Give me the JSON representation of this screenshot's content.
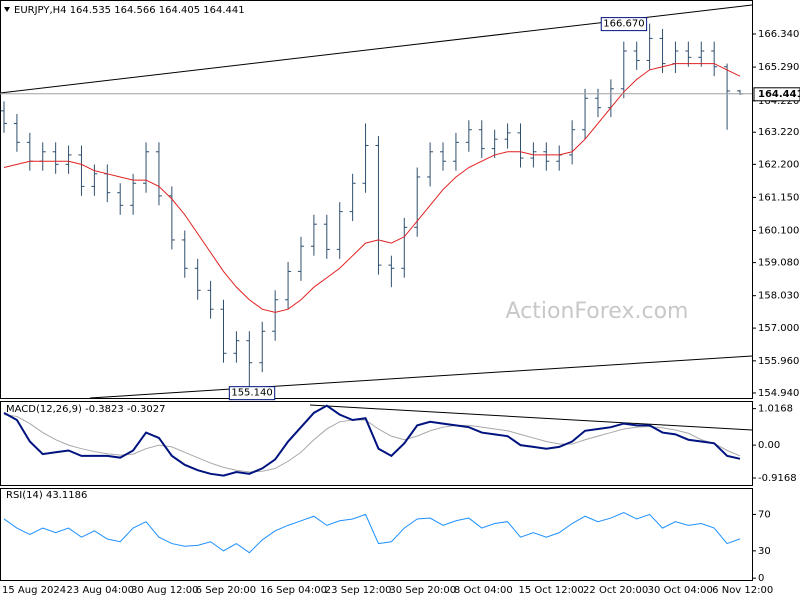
{
  "chart_data": [
    {
      "type": "ohlc",
      "title": "EURJPY,H4  164.535 164.566 164.405 164.441",
      "watermark": "ActionForex.com",
      "max_label": "166.670",
      "min_label": "155.140",
      "last_label": "164.441",
      "color": "#2f4f6f",
      "categories": [
        "15 Aug 2024",
        null,
        null,
        null,
        null,
        "23 Aug 04:00",
        null,
        null,
        null,
        null,
        "30 Aug 12:00",
        null,
        null,
        null,
        null,
        "6 Sep 20:00",
        null,
        null,
        null,
        null,
        "16 Sep 04:00",
        null,
        null,
        null,
        null,
        "23 Sep 12:00",
        null,
        null,
        null,
        null,
        "30 Sep 20:00",
        null,
        null,
        null,
        null,
        "8 Oct 04:00",
        null,
        null,
        null,
        null,
        "15 Oct 12:00",
        null,
        null,
        null,
        null,
        "22 Oct 20:00",
        null,
        null,
        null,
        null,
        "30 Oct 04:00",
        null,
        null,
        null,
        null,
        "6 Nov 12:00",
        null,
        null
      ],
      "open": [
        163.9,
        163.5,
        162.9,
        162.3,
        162.6,
        162.2,
        162.5,
        161.5,
        161.9,
        161.3,
        160.9,
        161.6,
        162.6,
        161.2,
        159.8,
        158.9,
        158.2,
        157.6,
        156.2,
        156.6,
        155.9,
        156.9,
        157.9,
        158.8,
        159.6,
        160.3,
        159.5,
        160.7,
        161.6,
        162.8,
        159.0,
        158.9,
        160.2,
        161.8,
        162.6,
        162.3,
        162.9,
        163.3,
        162.7,
        163.0,
        163.2,
        162.4,
        162.6,
        162.3,
        162.5,
        163.3,
        164.3,
        164.0,
        164.6,
        165.8,
        165.5,
        166.2,
        165.4,
        165.8,
        165.6,
        165.8,
        165.3,
        164.535
      ],
      "high": [
        164.2,
        163.8,
        163.2,
        162.9,
        162.9,
        162.8,
        162.8,
        162.2,
        162.2,
        161.6,
        161.9,
        162.9,
        162.9,
        161.5,
        160.1,
        159.2,
        158.5,
        157.9,
        156.9,
        156.9,
        157.2,
        158.2,
        159.1,
        159.9,
        160.6,
        160.6,
        161.0,
        161.9,
        163.5,
        163.1,
        159.3,
        160.5,
        162.1,
        162.9,
        162.9,
        163.2,
        163.6,
        163.6,
        163.3,
        163.5,
        163.5,
        162.9,
        162.9,
        162.8,
        163.6,
        164.6,
        164.6,
        164.9,
        166.1,
        166.1,
        166.67,
        166.5,
        166.1,
        166.1,
        166.1,
        166.1,
        165.4,
        164.566
      ],
      "low": [
        163.2,
        162.6,
        162.0,
        162.0,
        161.9,
        161.9,
        161.2,
        161.2,
        161.0,
        160.6,
        160.6,
        161.3,
        160.9,
        159.5,
        158.6,
        157.9,
        157.3,
        155.9,
        155.9,
        155.14,
        155.6,
        156.6,
        157.6,
        158.5,
        159.3,
        159.2,
        159.2,
        160.4,
        161.3,
        158.7,
        158.3,
        158.6,
        159.9,
        161.5,
        162.0,
        162.0,
        162.6,
        162.4,
        162.4,
        162.7,
        162.1,
        162.1,
        162.0,
        162.0,
        162.2,
        163.0,
        163.7,
        163.7,
        164.3,
        165.2,
        165.2,
        165.1,
        165.1,
        165.3,
        165.3,
        165.0,
        163.3,
        164.405
      ],
      "close": [
        163.5,
        162.9,
        162.3,
        162.6,
        162.2,
        162.5,
        161.5,
        161.9,
        161.3,
        160.9,
        161.6,
        162.6,
        161.2,
        159.8,
        158.9,
        158.2,
        157.6,
        156.2,
        156.6,
        155.9,
        156.9,
        157.9,
        158.8,
        159.6,
        160.3,
        159.5,
        160.7,
        161.6,
        162.8,
        159.0,
        158.9,
        160.2,
        161.8,
        162.6,
        162.3,
        162.9,
        163.3,
        162.7,
        163.0,
        163.2,
        162.4,
        162.6,
        162.3,
        162.5,
        163.3,
        164.3,
        164.0,
        164.6,
        165.8,
        165.5,
        166.2,
        165.4,
        165.8,
        165.6,
        165.8,
        165.3,
        164.53,
        164.441
      ],
      "ma": {
        "color": "#e02020",
        "values": [
          162.1,
          162.2,
          162.3,
          162.3,
          162.3,
          162.3,
          162.2,
          162.0,
          161.9,
          161.8,
          161.7,
          161.7,
          161.5,
          161.1,
          160.6,
          160.0,
          159.4,
          158.8,
          158.3,
          157.9,
          157.6,
          157.5,
          157.6,
          157.9,
          158.3,
          158.6,
          158.9,
          159.3,
          159.7,
          159.8,
          159.7,
          159.9,
          160.4,
          160.9,
          161.4,
          161.8,
          162.1,
          162.3,
          162.5,
          162.6,
          162.6,
          162.5,
          162.5,
          162.5,
          162.6,
          163.0,
          163.5,
          164.0,
          164.5,
          164.9,
          165.2,
          165.3,
          165.4,
          165.4,
          165.4,
          165.4,
          165.2,
          165.0
        ]
      },
      "ylim": [
        154.78,
        167.42
      ],
      "yticks": [
        {
          "value": 166.34,
          "label": "166.340"
        },
        {
          "value": 165.29,
          "label": "165.290"
        },
        {
          "value": 164.22,
          "label": "164.220"
        },
        {
          "value": 163.22,
          "label": "163.220"
        },
        {
          "value": 162.2,
          "label": "162.200"
        },
        {
          "value": 161.15,
          "label": "161.150"
        },
        {
          "value": 160.1,
          "label": "160.100"
        },
        {
          "value": 159.08,
          "label": "159.080"
        },
        {
          "value": 158.03,
          "label": "158.030"
        },
        {
          "value": 157,
          "label": "157.000"
        },
        {
          "value": 155.96,
          "label": "155.960"
        },
        {
          "value": 154.94,
          "label": "154.940"
        }
      ]
    },
    {
      "type": "line",
      "title": "MACD(12,26,9) -0.3823 -0.3027",
      "series": [
        {
          "color": "#00137f",
          "values": [
            0.9,
            0.7,
            0.1,
            -0.25,
            -0.2,
            -0.15,
            -0.3,
            -0.3,
            -0.3,
            -0.35,
            -0.15,
            0.35,
            0.2,
            -0.3,
            -0.55,
            -0.7,
            -0.8,
            -0.85,
            -0.75,
            -0.8,
            -0.65,
            -0.4,
            0.1,
            0.5,
            0.9,
            1.1,
            0.85,
            0.7,
            0.75,
            -0.1,
            -0.3,
            0.05,
            0.55,
            0.65,
            0.6,
            0.55,
            0.5,
            0.35,
            0.3,
            0.25,
            0.0,
            -0.05,
            -0.1,
            -0.05,
            0.1,
            0.4,
            0.45,
            0.5,
            0.6,
            0.55,
            0.55,
            0.35,
            0.3,
            0.15,
            0.1,
            0.05,
            -0.3,
            -0.3823
          ]
        },
        {
          "color": "#a8a8a8",
          "values": [
            0.85,
            0.8,
            0.6,
            0.35,
            0.15,
            0.0,
            -0.1,
            -0.18,
            -0.24,
            -0.28,
            -0.25,
            -0.1,
            0.0,
            -0.05,
            -0.2,
            -0.35,
            -0.5,
            -0.62,
            -0.7,
            -0.75,
            -0.73,
            -0.65,
            -0.45,
            -0.2,
            0.15,
            0.45,
            0.65,
            0.7,
            0.7,
            0.45,
            0.25,
            0.15,
            0.25,
            0.4,
            0.5,
            0.55,
            0.55,
            0.5,
            0.45,
            0.4,
            0.3,
            0.2,
            0.1,
            0.03,
            0.03,
            0.15,
            0.25,
            0.35,
            0.45,
            0.5,
            0.52,
            0.48,
            0.42,
            0.33,
            0.15,
            0.05,
            -0.15,
            -0.3027
          ]
        }
      ],
      "ylim": [
        -1.14,
        1.23
      ],
      "yticks": [
        1.0168,
        {
          "value": 0,
          "label": "0.00"
        },
        -0.9168
      ]
    },
    {
      "type": "line",
      "title": "RSI(14) 43.1186",
      "series": [
        {
          "color": "#1e90ff",
          "values": [
            65,
            55,
            48,
            55,
            50,
            55,
            45,
            52,
            43,
            40,
            55,
            62,
            45,
            38,
            35,
            36,
            40,
            30,
            38,
            28,
            42,
            52,
            58,
            63,
            68,
            58,
            63,
            65,
            70,
            38,
            40,
            55,
            65,
            66,
            58,
            63,
            66,
            55,
            60,
            62,
            45,
            50,
            45,
            50,
            60,
            68,
            62,
            66,
            72,
            65,
            70,
            55,
            62,
            58,
            60,
            55,
            38,
            43.1186
          ]
        }
      ],
      "ylim": [
        -2,
        99
      ],
      "yticks": [
        70,
        30,
        0
      ]
    }
  ]
}
